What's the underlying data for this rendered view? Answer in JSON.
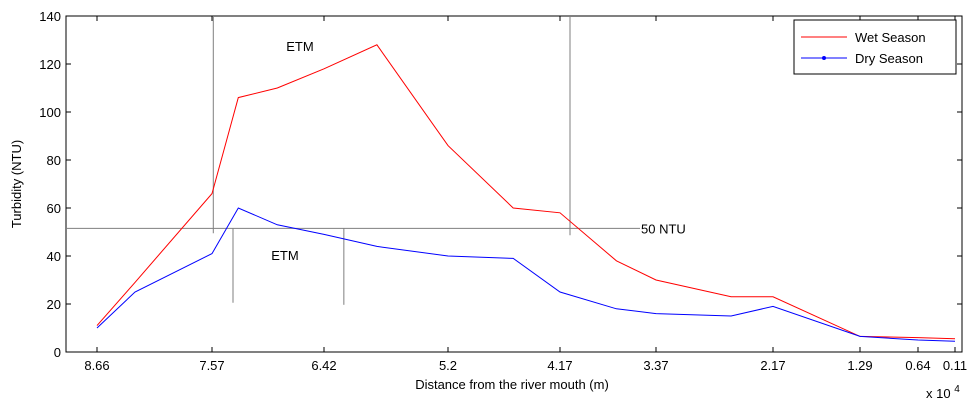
{
  "chart_data": {
    "type": "line",
    "title": "",
    "xlabel": "Distance from the river mouth (m)",
    "ylabel": "Turbidity (NTU)",
    "x_multiplier": "x 10",
    "x_multiplier_exp": "4",
    "ylim": [
      0,
      140
    ],
    "yticks": [
      0,
      20,
      40,
      60,
      80,
      100,
      120,
      140
    ],
    "xticks": [
      "8.66",
      "7.57",
      "6.42",
      "5.2",
      "4.17",
      "3.37",
      "2.17",
      "1.29",
      "0.64",
      "0.11"
    ],
    "x": [
      "8.66",
      "8.3",
      "7.57",
      "7.3",
      "6.9",
      "6.42",
      "5.9",
      "5.2",
      "4.6",
      "4.17",
      "3.7",
      "3.37",
      "2.6",
      "2.17",
      "1.29",
      "0.64",
      "0.11"
    ],
    "series": [
      {
        "name": "Wet Season",
        "color": "#ff0000",
        "marker": "none",
        "values": [
          11,
          29,
          66,
          106,
          110,
          118,
          128,
          86,
          60,
          58,
          38,
          30,
          23,
          23,
          6.5,
          6,
          5.5
        ]
      },
      {
        "name": "Dry Season",
        "color": "#0000ff",
        "marker": "dot",
        "values": [
          10,
          25,
          41,
          60,
          53,
          49,
          44,
          40,
          39,
          25,
          18,
          16,
          15,
          19,
          6.5,
          5,
          4.5
        ]
      }
    ],
    "legend_position": "top-right",
    "grid": false,
    "annotations": {
      "threshold_label": "50 NTU",
      "threshold_value": 51.5,
      "etm_label": "ETM",
      "wet_etm_range": [
        "7.3",
        "4.17"
      ],
      "wet_etm_y_bottom": 52,
      "dry_etm_range": [
        "7.57",
        "5.9"
      ],
      "dry_etm_y_bottom": 23
    }
  }
}
